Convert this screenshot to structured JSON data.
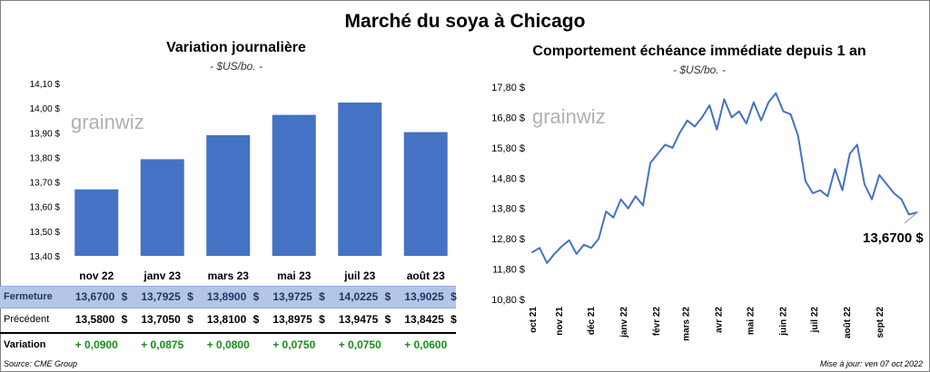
{
  "title": "Marché du soya à Chicago",
  "left_panel": {
    "title": "Variation journalière",
    "unit": "- $US/bo. -",
    "watermark": "grainwiz",
    "table": {
      "rows": [
        {
          "label": "Fermeture",
          "values": [
            "13,6700",
            "13,7925",
            "13,8900",
            "13,9725",
            "14,0225",
            "13,9025"
          ]
        },
        {
          "label": "Précédent",
          "values": [
            "13,5800",
            "13,7050",
            "13,8100",
            "13,8975",
            "13,9475",
            "13,8425"
          ]
        },
        {
          "label": "Variation",
          "values": [
            "+ 0,0900",
            "+ 0,0875",
            "+ 0,0800",
            "+ 0,0750",
            "+ 0,0750",
            "+ 0,0600"
          ]
        }
      ],
      "currency": "$"
    }
  },
  "right_panel": {
    "title": "Comportement  échéance immédiate depuis 1 an",
    "unit": "- $US/bo. -",
    "watermark": "grainwiz",
    "last_value_label": "13,6700 $"
  },
  "footer": {
    "source": "Source: CME Group",
    "updated": "Mise à jour: ven 07 oct 2022"
  },
  "colors": {
    "bar": "#4472c4",
    "line": "#4472c4",
    "header_row": "#b4c6e7",
    "positive": "#1a8c1a"
  },
  "chart_data": [
    {
      "type": "bar",
      "categories": [
        "nov 22",
        "janv 23",
        "mars 23",
        "mai 23",
        "juil 23",
        "août 23"
      ],
      "values": [
        13.67,
        13.7925,
        13.89,
        13.9725,
        14.0225,
        13.9025
      ],
      "ylim": [
        13.4,
        14.1
      ],
      "yticks": [
        "13,40 $",
        "13,50 $",
        "13,60 $",
        "13,70 $",
        "13,80 $",
        "13,90 $",
        "14,00 $",
        "14,10 $"
      ],
      "title": "Variation journalière"
    },
    {
      "type": "line",
      "title": "Comportement  échéance immédiate depuis 1 an",
      "ylim": [
        10.8,
        17.8
      ],
      "yticks": [
        "10,80 $",
        "11,80 $",
        "12,80 $",
        "13,80 $",
        "14,80 $",
        "15,80 $",
        "16,80 $",
        "17,80 $"
      ],
      "xticks": [
        "oct 21",
        "nov 21",
        "déc 21",
        "janv 22",
        "févr 22",
        "mars 22",
        "avr 22",
        "mai 22",
        "juin 22",
        "juil 22",
        "août 22",
        "sept 22"
      ],
      "x": [
        "2021-10-07",
        "2021-10-14",
        "2021-10-21",
        "2021-10-28",
        "2021-11-04",
        "2021-11-11",
        "2021-11-18",
        "2021-11-25",
        "2021-12-02",
        "2021-12-09",
        "2021-12-16",
        "2021-12-23",
        "2021-12-30",
        "2022-01-06",
        "2022-01-13",
        "2022-01-20",
        "2022-01-27",
        "2022-02-03",
        "2022-02-10",
        "2022-02-17",
        "2022-02-24",
        "2022-03-03",
        "2022-03-10",
        "2022-03-17",
        "2022-03-24",
        "2022-03-31",
        "2022-04-07",
        "2022-04-14",
        "2022-04-21",
        "2022-04-28",
        "2022-05-05",
        "2022-05-12",
        "2022-05-19",
        "2022-05-26",
        "2022-06-02",
        "2022-06-09",
        "2022-06-16",
        "2022-06-23",
        "2022-06-30",
        "2022-07-07",
        "2022-07-14",
        "2022-07-21",
        "2022-07-28",
        "2022-08-04",
        "2022-08-11",
        "2022-08-18",
        "2022-08-25",
        "2022-09-01",
        "2022-09-08",
        "2022-09-15",
        "2022-09-22",
        "2022-09-29",
        "2022-10-07"
      ],
      "values": [
        12.35,
        12.5,
        12.0,
        12.3,
        12.55,
        12.75,
        12.3,
        12.6,
        12.5,
        12.8,
        13.7,
        13.5,
        14.1,
        13.8,
        14.2,
        13.9,
        15.3,
        15.6,
        15.9,
        15.8,
        16.3,
        16.7,
        16.5,
        16.8,
        17.2,
        16.4,
        17.4,
        16.8,
        17.0,
        16.6,
        17.3,
        16.7,
        17.3,
        17.6,
        17.0,
        16.9,
        16.2,
        14.7,
        14.3,
        14.4,
        14.2,
        15.1,
        14.4,
        15.6,
        15.9,
        14.6,
        14.1,
        14.9,
        14.6,
        14.3,
        14.1,
        13.6,
        13.67
      ]
    }
  ]
}
